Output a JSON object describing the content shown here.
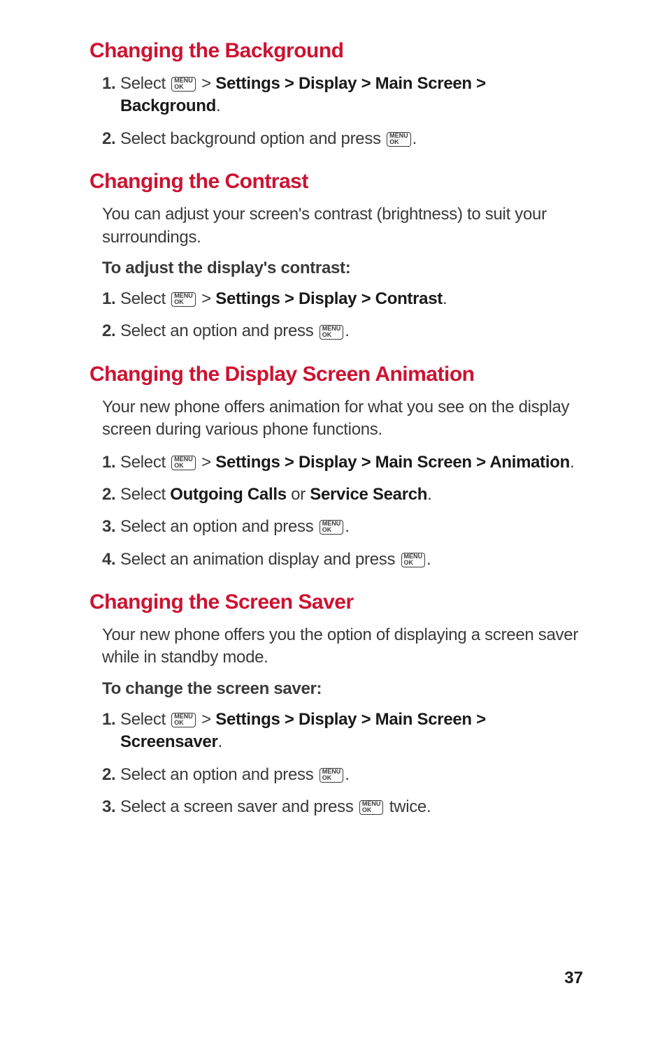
{
  "colors": {
    "heading": "#cd1231",
    "body": "#3a3a3a",
    "bold": "#1a1a1a",
    "background": "#ffffff"
  },
  "typography": {
    "heading_fontsize": 30,
    "body_fontsize": 24,
    "menu_key_fontsize": 9
  },
  "menu_key": {
    "top": "MENU",
    "bottom": "OK"
  },
  "page_number": "37",
  "sections": [
    {
      "heading": "Changing the Background",
      "intro": null,
      "sub": null,
      "steps": [
        {
          "num": "1.",
          "parts": [
            "Select ",
            {
              "key": true
            },
            " > ",
            {
              "b": "Settings > Display > Main Screen > Background"
            },
            "."
          ]
        },
        {
          "num": "2.",
          "parts": [
            "Select background option and press ",
            {
              "key": true
            },
            "."
          ]
        }
      ]
    },
    {
      "heading": "Changing the Contrast",
      "intro": "You can adjust your screen's contrast (brightness) to suit your surroundings.",
      "sub": "To adjust the display's contrast:",
      "steps": [
        {
          "num": "1.",
          "parts": [
            "Select ",
            {
              "key": true
            },
            " > ",
            {
              "b": "Settings > Display > Contrast"
            },
            "."
          ]
        },
        {
          "num": "2.",
          "parts": [
            "Select an option and press ",
            {
              "key": true
            },
            "."
          ]
        }
      ]
    },
    {
      "heading": "Changing the Display Screen Animation",
      "intro": "Your new phone offers animation for what you see on the display screen during various phone functions.",
      "sub": null,
      "steps": [
        {
          "num": "1.",
          "parts": [
            "Select ",
            {
              "key": true
            },
            " > ",
            {
              "b": "Settings > Display > Main Screen > Animation"
            },
            "."
          ]
        },
        {
          "num": "2.",
          "parts": [
            "Select ",
            {
              "b": "Outgoing Calls"
            },
            " or ",
            {
              "b": "Service Search"
            },
            "."
          ]
        },
        {
          "num": "3.",
          "parts": [
            "Select an option and press ",
            {
              "key": true
            },
            "."
          ]
        },
        {
          "num": "4.",
          "parts": [
            "Select an animation display and press ",
            {
              "key": true
            },
            "."
          ]
        }
      ]
    },
    {
      "heading": "Changing the Screen Saver",
      "intro": "Your new phone offers you the option of displaying a screen saver while in standby mode.",
      "sub": "To change the screen saver:",
      "steps": [
        {
          "num": "1.",
          "parts": [
            "Select ",
            {
              "key": true
            },
            " > ",
            {
              "b": "Settings > Display > Main Screen > Screensaver"
            },
            "."
          ]
        },
        {
          "num": "2.",
          "parts": [
            "Select an option and press ",
            {
              "key": true
            },
            "."
          ]
        },
        {
          "num": "3.",
          "parts": [
            "Select a screen saver and press ",
            {
              "key": true
            },
            " twice."
          ]
        }
      ]
    }
  ]
}
